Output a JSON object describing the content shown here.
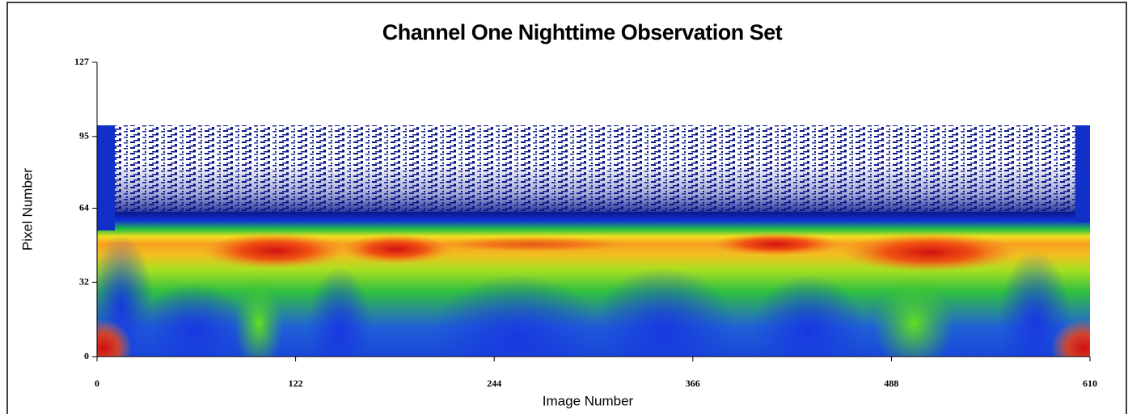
{
  "chart_data": {
    "type": "heatmap",
    "title": "Channel One Nighttime Observation Set",
    "x_label": "Image Number",
    "y_label": "Pixel Number",
    "xlim": [
      0,
      610
    ],
    "ylim": [
      0,
      127
    ],
    "xticks": [
      0,
      122,
      244,
      366,
      488,
      610
    ],
    "yticks": [
      0,
      32,
      64,
      95,
      127
    ]
  }
}
